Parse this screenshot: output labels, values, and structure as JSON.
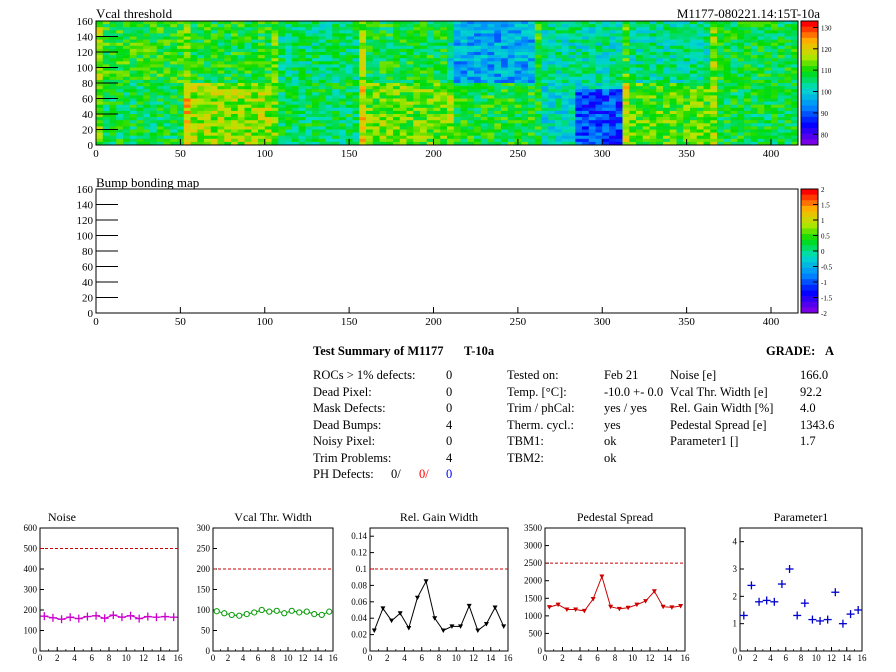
{
  "maps": {
    "threshold": {
      "title": "Vcal threshold",
      "module_label": "M1177-080221.14:15T-10a",
      "x_ticks": [
        "0",
        "50",
        "100",
        "150",
        "200",
        "250",
        "300",
        "350",
        "400"
      ],
      "y_ticks": [
        "0",
        "20",
        "40",
        "60",
        "80",
        "100",
        "120",
        "140",
        "160"
      ],
      "palette_ticks": [
        "130",
        "120",
        "110",
        "100",
        "90",
        "80"
      ],
      "palette_range": [
        75,
        133
      ]
    },
    "bump": {
      "title": "Bump bonding map",
      "x_ticks": [
        "0",
        "50",
        "100",
        "150",
        "200",
        "250",
        "300",
        "350",
        "400"
      ],
      "y_ticks": [
        "0",
        "20",
        "40",
        "60",
        "80",
        "100",
        "120",
        "140",
        "160"
      ],
      "palette_ticks": [
        "2",
        "1.5",
        "1",
        "0.5",
        "0",
        "-0.5",
        "-1",
        "-1.5",
        "-2"
      ],
      "palette_range": [
        -2,
        2
      ]
    }
  },
  "summary": {
    "title": "Test Summary of M1177",
    "test_label": "T-10a",
    "grade_label": "GRADE:",
    "grade": "A",
    "col1": [
      {
        "label": "ROCs > 1% defects:",
        "value": "0"
      },
      {
        "label": "Dead Pixel:",
        "value": "0"
      },
      {
        "label": "Mask Defects:",
        "value": "0"
      },
      {
        "label": "Dead Bumps:",
        "value": "4"
      },
      {
        "label": "Noisy Pixel:",
        "value": "0"
      },
      {
        "label": "Trim Problems:",
        "value": "4"
      }
    ],
    "ph_defects": {
      "label": "PH Defects:",
      "values": [
        "0/",
        "0/",
        "0"
      ],
      "colors": [
        "#000000",
        "#ff0000",
        "#0000ff"
      ]
    },
    "col2": [
      {
        "label": "Tested on:",
        "value": "Feb 21"
      },
      {
        "label": "Temp. [°C]:",
        "value": "-10.0 +- 0.0"
      },
      {
        "label": "Trim / phCal:",
        "value": "yes / yes"
      },
      {
        "label": "Therm. cycl.:",
        "value": "yes"
      },
      {
        "label": "TBM1:",
        "value": "ok"
      },
      {
        "label": "TBM2:",
        "value": "ok"
      }
    ],
    "col3": [
      {
        "label": "Noise [e]",
        "value": "166.0"
      },
      {
        "label": "Vcal Thr. Width [e]",
        "value": "92.2"
      },
      {
        "label": "Rel. Gain Width [%]",
        "value": "4.0"
      },
      {
        "label": "Pedestal Spread [e]",
        "value": "1343.6"
      },
      {
        "label": "Parameter1 []",
        "value": "1.7"
      }
    ]
  },
  "chart_data": [
    {
      "type": "line",
      "title": "Noise",
      "x": [
        0,
        1,
        2,
        3,
        4,
        5,
        6,
        7,
        8,
        9,
        10,
        11,
        12,
        13,
        14,
        15
      ],
      "values": [
        170,
        162,
        155,
        165,
        158,
        168,
        172,
        160,
        175,
        165,
        172,
        158,
        168,
        165,
        168,
        165
      ],
      "xlim": [
        0,
        16
      ],
      "ylim": [
        0,
        600
      ],
      "x_ticks": [
        0,
        2,
        4,
        6,
        8,
        10,
        12,
        14,
        16
      ],
      "y_ticks": [
        0,
        100,
        200,
        300,
        400,
        500,
        600
      ],
      "limit_line": 500,
      "marker": "cross",
      "color": "#cc00cc"
    },
    {
      "type": "line",
      "title": "Vcal Thr. Width",
      "x": [
        0,
        1,
        2,
        3,
        4,
        5,
        6,
        7,
        8,
        9,
        10,
        11,
        12,
        13,
        14,
        15
      ],
      "values": [
        97,
        92,
        88,
        86,
        90,
        94,
        100,
        96,
        98,
        92,
        98,
        94,
        96,
        90,
        88,
        96
      ],
      "xlim": [
        0,
        16
      ],
      "ylim": [
        0,
        300
      ],
      "x_ticks": [
        0,
        2,
        4,
        6,
        8,
        10,
        12,
        14,
        16
      ],
      "y_ticks": [
        0,
        50,
        100,
        150,
        200,
        250,
        300
      ],
      "limit_line": 200,
      "marker": "circle",
      "color": "#009900"
    },
    {
      "type": "line",
      "title": "Rel. Gain Width",
      "x": [
        0,
        1,
        2,
        3,
        4,
        5,
        6,
        7,
        8,
        9,
        10,
        11,
        12,
        13,
        14,
        15
      ],
      "values": [
        0.025,
        0.052,
        0.037,
        0.046,
        0.028,
        0.065,
        0.085,
        0.04,
        0.025,
        0.03,
        0.03,
        0.055,
        0.025,
        0.033,
        0.053,
        0.03
      ],
      "xlim": [
        0,
        16
      ],
      "ylim": [
        0,
        0.15
      ],
      "x_ticks": [
        0,
        2,
        4,
        6,
        8,
        10,
        12,
        14,
        16
      ],
      "y_ticks": [
        0,
        0.02,
        0.04,
        0.06,
        0.08,
        0.1,
        0.12,
        0.14
      ],
      "limit_line": 0.1,
      "marker": "triangle",
      "color": "#000000"
    },
    {
      "type": "line",
      "title": "Pedestal Spread",
      "x": [
        0,
        1,
        2,
        3,
        4,
        5,
        6,
        7,
        8,
        9,
        10,
        11,
        12,
        13,
        14,
        15
      ],
      "values": [
        1250,
        1320,
        1180,
        1180,
        1140,
        1480,
        2120,
        1260,
        1200,
        1230,
        1320,
        1420,
        1700,
        1260,
        1240,
        1280
      ],
      "xlim": [
        0,
        16
      ],
      "ylim": [
        0,
        3500
      ],
      "x_ticks": [
        0,
        2,
        4,
        6,
        8,
        10,
        12,
        14,
        16
      ],
      "y_ticks": [
        0,
        500,
        1000,
        1500,
        2000,
        2500,
        3000,
        3500
      ],
      "limit_line": 2500,
      "marker": "triangle",
      "color": "#cc0000"
    },
    {
      "type": "scatter",
      "title": "Parameter1",
      "x": [
        0,
        1,
        2,
        3,
        4,
        5,
        6,
        7,
        8,
        9,
        10,
        11,
        12,
        13,
        14,
        15
      ],
      "values": [
        1.3,
        2.4,
        1.8,
        1.85,
        1.8,
        2.45,
        3.0,
        1.3,
        1.75,
        1.15,
        1.1,
        1.15,
        2.15,
        1.0,
        1.35,
        1.5
      ],
      "xlim": [
        0,
        16
      ],
      "ylim": [
        0,
        4.5
      ],
      "x_ticks": [
        0,
        2,
        4,
        6,
        8,
        10,
        12,
        14,
        16
      ],
      "y_ticks": [
        0,
        1,
        2,
        3,
        4
      ],
      "marker": "cross",
      "color": "#0000cc"
    }
  ]
}
